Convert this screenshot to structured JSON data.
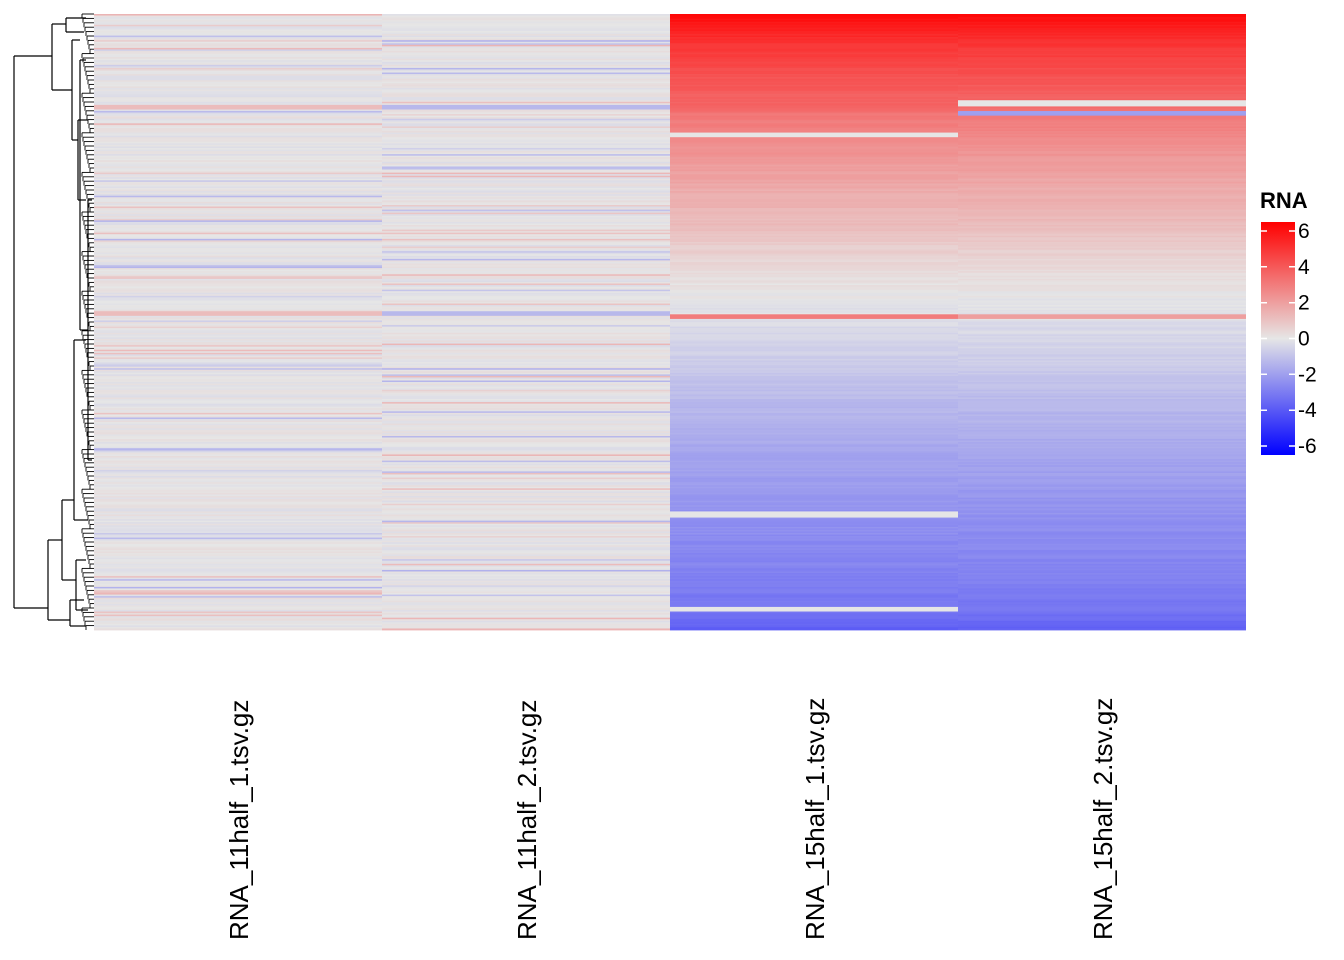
{
  "chart_data": {
    "type": "heatmap",
    "title": "",
    "columns": [
      "RNA_11half_1.tsv.gz",
      "RNA_11half_2.tsv.gz",
      "RNA_15half_1.tsv.gz",
      "RNA_15half_2.tsv.gz"
    ],
    "row_count": 400,
    "row_dendrogram": true,
    "legend": {
      "title": "RNA",
      "position": "right",
      "range": [
        -6.5,
        6.5
      ],
      "ticks": [
        6,
        4,
        2,
        0,
        -2,
        -4,
        -6
      ],
      "colors": {
        "low": "#0000ff",
        "mid": "#e6e6e6",
        "high": "#ff0000"
      }
    },
    "profile_15half": [
      [
        0,
        6.3
      ],
      [
        10,
        5.8
      ],
      [
        30,
        5.0
      ],
      [
        70,
        4.0
      ],
      [
        90,
        3.7
      ],
      [
        100,
        3.2
      ],
      [
        120,
        2.7
      ],
      [
        150,
        2.1
      ],
      [
        180,
        1.6
      ],
      [
        210,
        1.2
      ],
      [
        240,
        0.6
      ],
      [
        260,
        0.3
      ],
      [
        290,
        -0.1
      ],
      [
        330,
        -0.5
      ],
      [
        360,
        -0.9
      ],
      [
        390,
        -1.3
      ],
      [
        420,
        -1.6
      ],
      [
        450,
        -1.9
      ],
      [
        490,
        -2.3
      ],
      [
        530,
        -2.6
      ],
      [
        570,
        -2.9
      ],
      [
        600,
        -3.3
      ],
      [
        615,
        -3.8
      ]
    ],
    "highlight_bands_15half_1": [
      {
        "row_fraction": 0.195,
        "value": 0.0
      },
      {
        "row_fraction": 0.49,
        "value": 3.0
      },
      {
        "row_fraction": 0.81,
        "value": 0.0
      },
      {
        "row_fraction": 0.965,
        "value": 0.0
      }
    ],
    "highlight_bands_15half_2": [
      {
        "row_fraction": 0.145,
        "value": 0.0
      },
      {
        "row_fraction": 0.16,
        "value": -2.0
      },
      {
        "row_fraction": 0.49,
        "value": 2.0
      }
    ],
    "value_range_11half": [
      -1.5,
      1.5
    ]
  }
}
